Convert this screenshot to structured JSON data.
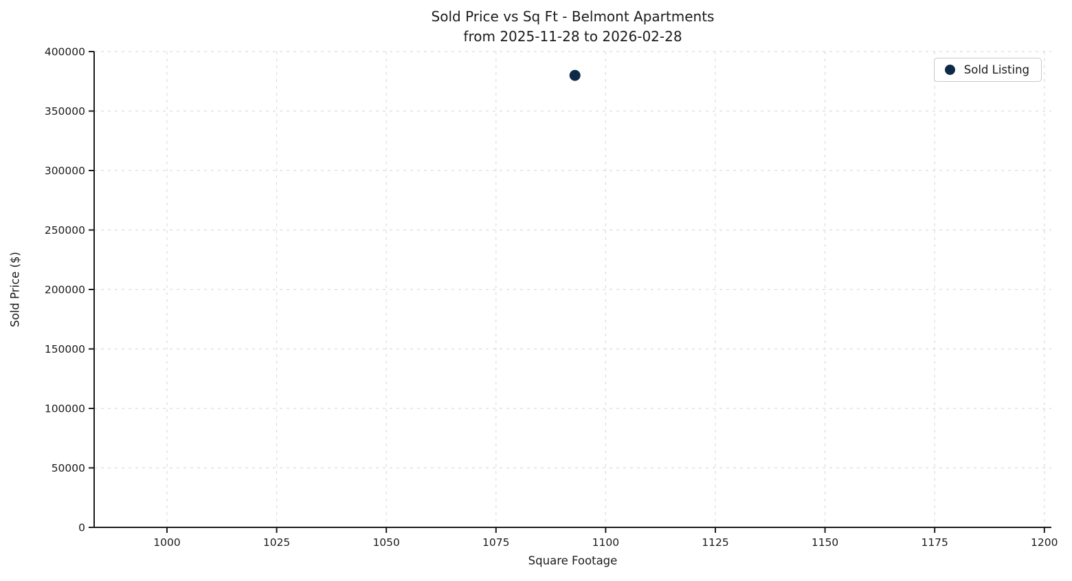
{
  "figure": {
    "title_line1": "Sold Price vs Sq Ft - Belmont Apartments",
    "title_line2": "from 2025-11-28 to 2026-02-28",
    "xlabel": "Square Footage",
    "ylabel": "Sold Price ($)"
  },
  "legend": {
    "items": [
      {
        "label": "Sold Listing",
        "marker_color": "#0e2a47"
      }
    ]
  },
  "colors": {
    "marker": "#0e2a47",
    "grid": "#dcdcdc",
    "axis": "#1a1a1a",
    "text": "#1a1a1a",
    "legend_border": "#c9c9c9",
    "background": "#ffffff"
  },
  "chart_data": {
    "type": "scatter",
    "title": "Sold Price vs Sq Ft - Belmont Apartments\nfrom 2025-11-28 to 2026-02-28",
    "xlabel": "Square Footage",
    "ylabel": "Sold Price ($)",
    "xlim": [
      983.4,
      1201.6
    ],
    "ylim": [
      0,
      400000
    ],
    "x_ticks": [
      1000,
      1025,
      1050,
      1075,
      1100,
      1125,
      1150,
      1175,
      1200
    ],
    "y_ticks": [
      0,
      50000,
      100000,
      150000,
      200000,
      250000,
      300000,
      350000,
      400000
    ],
    "grid": true,
    "grid_style": "dashed",
    "legend_position": "upper-right",
    "series": [
      {
        "name": "Sold Listing",
        "color": "#0e2a47",
        "marker": "circle",
        "points": [
          {
            "x": 1093,
            "y": 380000
          }
        ]
      }
    ]
  }
}
